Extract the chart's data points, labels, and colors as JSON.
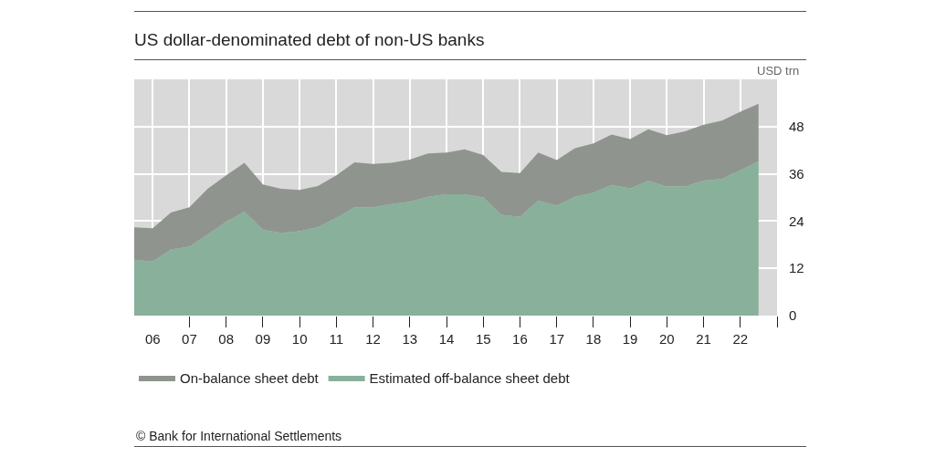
{
  "chart_data": {
    "type": "area",
    "title": "US dollar-denominated debt of non-US banks",
    "ylabel": "USD trn",
    "annotations": [
      "© Bank for International Settlements"
    ],
    "stacked": true,
    "grid": true,
    "legend": "bottom",
    "x": [
      "2005-07",
      "2006-01",
      "2006-07",
      "2007-01",
      "2007-07",
      "2008-01",
      "2008-07",
      "2009-01",
      "2009-07",
      "2010-01",
      "2010-07",
      "2011-01",
      "2011-07",
      "2012-01",
      "2012-07",
      "2013-01",
      "2013-07",
      "2014-01",
      "2014-07",
      "2015-01",
      "2015-07",
      "2016-01",
      "2016-07",
      "2017-01",
      "2017-07",
      "2018-01",
      "2018-07",
      "2019-01",
      "2019-07",
      "2020-01",
      "2020-07",
      "2021-01",
      "2021-07",
      "2022-01",
      "2022-07"
    ],
    "series": [
      {
        "name": "Estimated off-balance sheet debt",
        "color": "#88b09a",
        "values": [
          14.2,
          13.7,
          16.8,
          17.5,
          20.6,
          23.8,
          26.4,
          21.8,
          21.0,
          21.4,
          22.5,
          24.8,
          27.5,
          27.5,
          28.3,
          28.9,
          30.2,
          30.8,
          30.8,
          30.0,
          25.6,
          25.1,
          29.2,
          27.9,
          30.2,
          31.2,
          33.2,
          32.3,
          34.2,
          32.8,
          32.8,
          34.3,
          34.7,
          36.9,
          39.2
        ]
      },
      {
        "name": "On-balance sheet debt",
        "color": "#8f958e",
        "values": [
          8.2,
          8.5,
          9.4,
          10.0,
          11.6,
          11.8,
          12.4,
          11.5,
          11.2,
          10.5,
          10.4,
          10.8,
          11.4,
          11.0,
          10.5,
          10.7,
          11.0,
          10.6,
          11.4,
          10.8,
          10.9,
          11.1,
          12.2,
          11.6,
          12.3,
          12.5,
          12.8,
          12.5,
          13.1,
          13.0,
          14.0,
          14.2,
          14.8,
          14.9,
          14.6
        ]
      }
    ],
    "xlim": [
      "2005-07",
      "2023"
    ],
    "xticks": [
      {
        "value": "2006",
        "label": "06"
      },
      {
        "value": "2007",
        "label": "07"
      },
      {
        "value": "2008",
        "label": "08"
      },
      {
        "value": "2009",
        "label": "09"
      },
      {
        "value": "2010",
        "label": "10"
      },
      {
        "value": "2011",
        "label": "11"
      },
      {
        "value": "2012",
        "label": "12"
      },
      {
        "value": "2013",
        "label": "13"
      },
      {
        "value": "2014",
        "label": "14"
      },
      {
        "value": "2015",
        "label": "15"
      },
      {
        "value": "2016",
        "label": "16"
      },
      {
        "value": "2017",
        "label": "17"
      },
      {
        "value": "2018",
        "label": "18"
      },
      {
        "value": "2019",
        "label": "19"
      },
      {
        "value": "2020",
        "label": "20"
      },
      {
        "value": "2021",
        "label": "21"
      },
      {
        "value": "2022",
        "label": "22"
      },
      {
        "value": "2023",
        "label": null
      }
    ],
    "ylim": [
      0,
      60
    ],
    "yticks": [
      0,
      12,
      24,
      36,
      48
    ]
  }
}
